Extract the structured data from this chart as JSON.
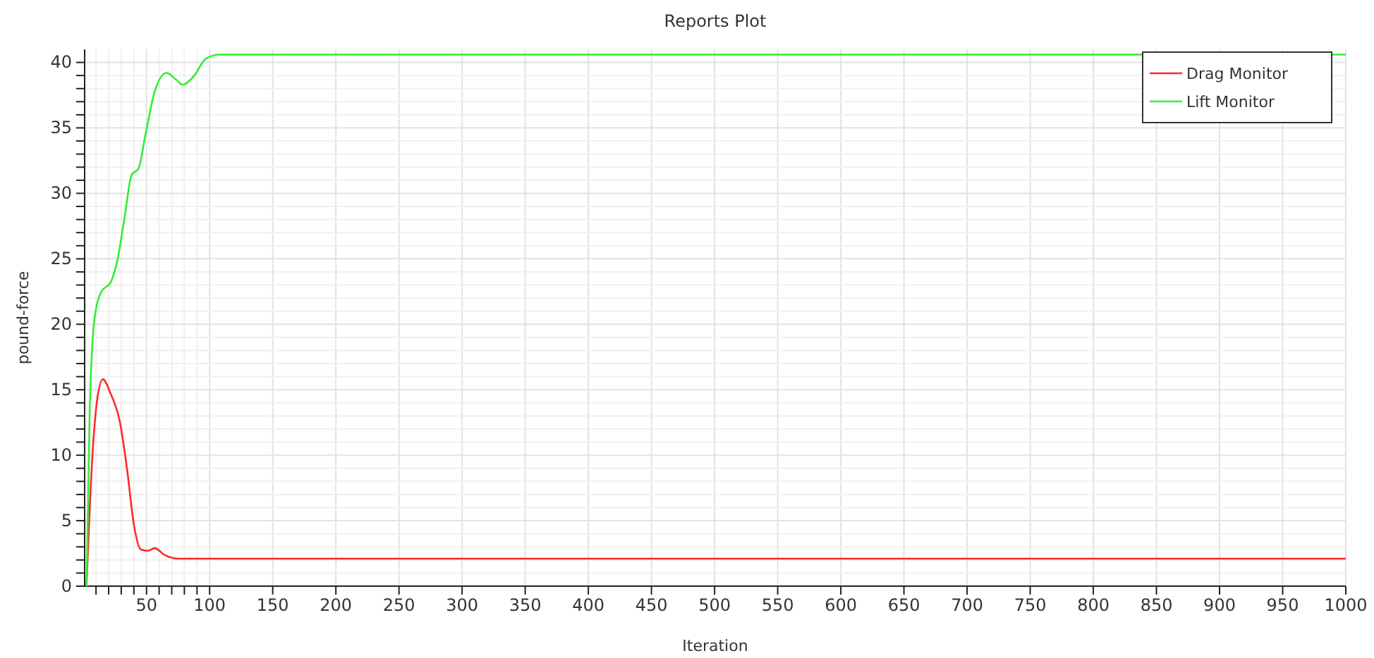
{
  "chart_data": {
    "type": "line",
    "title": "Reports Plot",
    "xlabel": "Iteration",
    "ylabel": "pound-force",
    "xlim": [
      1,
      1000
    ],
    "ylim": [
      0,
      41
    ],
    "xticks": [
      {
        "value": 10,
        "label": null
      },
      {
        "value": 20,
        "label": null
      },
      {
        "value": 30,
        "label": null
      },
      {
        "value": 40,
        "label": null
      },
      50,
      {
        "value": 60,
        "label": null
      },
      {
        "value": 70,
        "label": null
      },
      {
        "value": 80,
        "label": null
      },
      {
        "value": 90,
        "label": null
      },
      100,
      150,
      200,
      250,
      300,
      350,
      400,
      450,
      500,
      550,
      600,
      650,
      700,
      750,
      800,
      850,
      900,
      950,
      1000
    ],
    "yticks": [
      0,
      {
        "value": 1,
        "label": null
      },
      {
        "value": 2,
        "label": null
      },
      {
        "value": 3,
        "label": null
      },
      {
        "value": 4,
        "label": null
      },
      5,
      {
        "value": 6,
        "label": null
      },
      {
        "value": 7,
        "label": null
      },
      {
        "value": 8,
        "label": null
      },
      {
        "value": 9,
        "label": null
      },
      10,
      {
        "value": 11,
        "label": null
      },
      {
        "value": 12,
        "label": null
      },
      {
        "value": 13,
        "label": null
      },
      {
        "value": 14,
        "label": null
      },
      15,
      {
        "value": 16,
        "label": null
      },
      {
        "value": 17,
        "label": null
      },
      {
        "value": 18,
        "label": null
      },
      {
        "value": 19,
        "label": null
      },
      20,
      {
        "value": 21,
        "label": null
      },
      {
        "value": 22,
        "label": null
      },
      {
        "value": 23,
        "label": null
      },
      {
        "value": 24,
        "label": null
      },
      25,
      {
        "value": 26,
        "label": null
      },
      {
        "value": 27,
        "label": null
      },
      {
        "value": 28,
        "label": null
      },
      {
        "value": 29,
        "label": null
      },
      30,
      {
        "value": 31,
        "label": null
      },
      {
        "value": 32,
        "label": null
      },
      {
        "value": 33,
        "label": null
      },
      {
        "value": 34,
        "label": null
      },
      35,
      {
        "value": 36,
        "label": null
      },
      {
        "value": 37,
        "label": null
      },
      {
        "value": 38,
        "label": null
      },
      {
        "value": 39,
        "label": null
      },
      40
    ],
    "grid": true,
    "legend": "top right",
    "line_style": "solid",
    "marker": "none",
    "series": [
      {
        "name": "Drag Monitor",
        "color": "#ff2a2a",
        "x": [
          2.5,
          7,
          10.6,
          15.4,
          21.6,
          29,
          34.5,
          40,
          45.6,
          51.1,
          56.6,
          64,
          75,
          85,
          100,
          200,
          400,
          600,
          800,
          1000
        ],
        "values": [
          0,
          9.7,
          14.0,
          15.8,
          14.7,
          12.5,
          9.0,
          4.7,
          2.8,
          2.7,
          2.9,
          2.4,
          2.1,
          2.1,
          2.1,
          2.1,
          2.1,
          2.1,
          2.1,
          2.1
        ]
      },
      {
        "name": "Lift Monitor",
        "color": "#33ee33",
        "x": [
          2.5,
          5,
          8.8,
          14.3,
          21.6,
          27.2,
          32.7,
          38.2,
          43.7,
          49.2,
          56.6,
          65.8,
          73.2,
          78.7,
          87.9,
          97.1,
          108,
          200,
          400,
          600,
          800,
          1000
        ],
        "values": [
          0,
          13.3,
          20.4,
          22.5,
          23.2,
          25.0,
          28.2,
          31.4,
          31.9,
          34.5,
          37.8,
          39.2,
          38.7,
          38.3,
          39.0,
          40.3,
          40.6,
          40.6,
          40.6,
          40.6,
          40.6,
          40.6
        ]
      }
    ]
  }
}
